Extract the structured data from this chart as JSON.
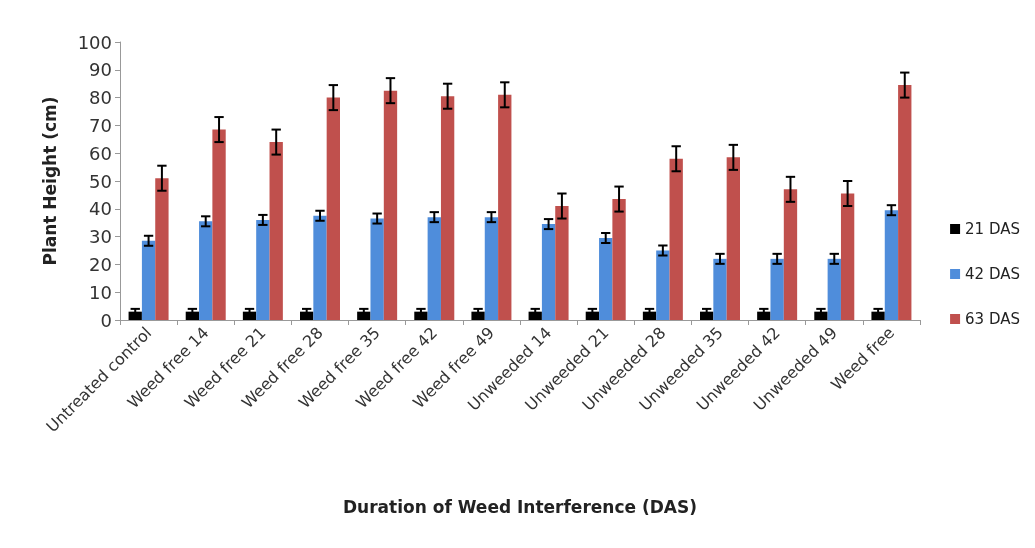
{
  "chart_data": {
    "type": "bar",
    "xlabel": "Duration of Weed Interference (DAS)",
    "ylabel": "Plant Height (cm)",
    "categories": [
      "Untreated control",
      "Weed free 14",
      "Weed free 21",
      "Weed free 28",
      "Weed free 35",
      "Weed free 42",
      "Weed free 49",
      "Unweeded 14",
      "Unweeded 21",
      "Unweeded 28",
      "Unweeded 35",
      "Unweeded 42",
      "Unweeded 49",
      "Weed free"
    ],
    "series": [
      {
        "name": "21 DAS",
        "color": "#000000",
        "values": [
          3,
          3,
          3,
          3,
          3,
          3,
          3,
          3,
          3,
          3,
          3,
          3,
          3,
          3
        ],
        "errors": [
          1,
          1,
          1,
          1,
          1,
          1,
          1,
          1,
          1,
          1,
          1,
          1,
          1,
          1
        ]
      },
      {
        "name": "42 DAS",
        "color": "#4f8ddb",
        "values": [
          28.5,
          35.5,
          36,
          37.5,
          36.5,
          37,
          37,
          34.5,
          29.5,
          25,
          22,
          22,
          22,
          39.5
        ],
        "errors": [
          1.8,
          1.8,
          1.8,
          1.8,
          1.8,
          1.8,
          1.8,
          1.8,
          1.8,
          1.8,
          1.8,
          1.8,
          1.8,
          1.8
        ]
      },
      {
        "name": "63 DAS",
        "color": "#c0504d",
        "values": [
          51,
          68.5,
          64,
          80,
          82.5,
          80.5,
          81,
          41,
          43.5,
          58,
          58.5,
          47,
          45.5,
          84.5
        ],
        "errors": [
          4.5,
          4.5,
          4.5,
          4.5,
          4.5,
          4.5,
          4.5,
          4.5,
          4.5,
          4.5,
          4.5,
          4.5,
          4.5,
          4.5
        ]
      }
    ],
    "ylim": [
      0,
      100
    ],
    "yticks": [
      0,
      10,
      20,
      30,
      40,
      50,
      60,
      70,
      80,
      90,
      100
    ],
    "grid": false,
    "legend": "right"
  }
}
